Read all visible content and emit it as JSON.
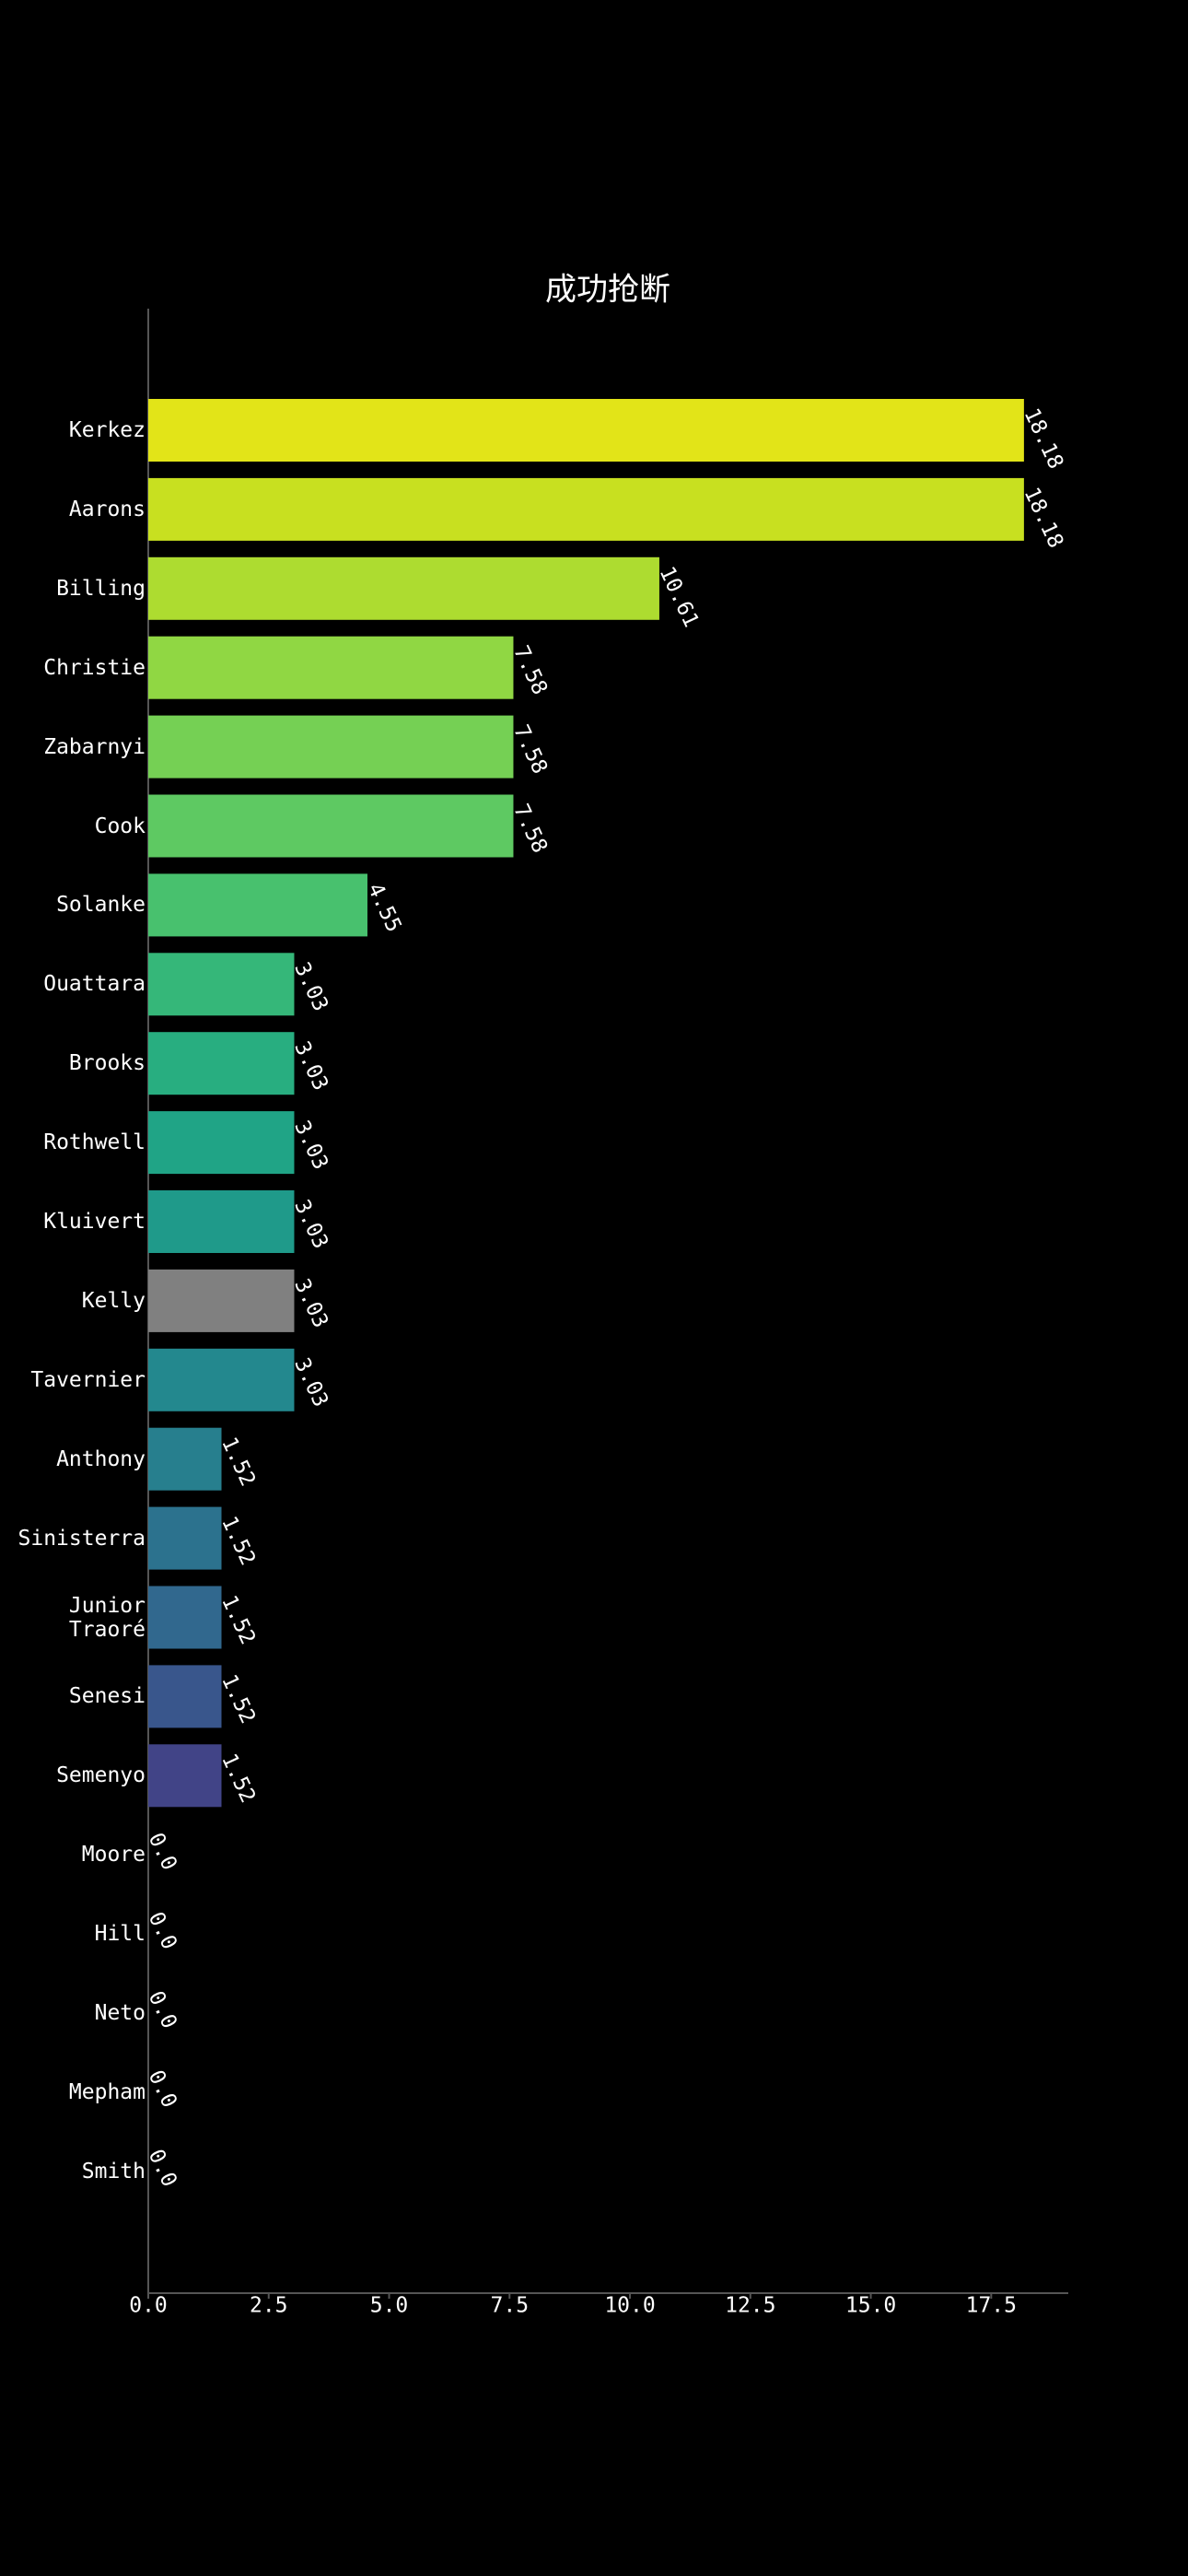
{
  "chart_data": {
    "type": "bar",
    "orientation": "horizontal",
    "title": "成功抢断",
    "categories": [
      "Kerkez",
      "Aarons",
      "Billing",
      "Christie",
      "Zabarnyi",
      "Cook",
      "Solanke",
      "Ouattara",
      "Brooks",
      "Rothwell",
      "Kluivert",
      "Kelly",
      "Tavernier",
      "Anthony",
      "Sinisterra",
      "Junior Traoré",
      "Senesi",
      "Semenyo",
      "Moore",
      "Hill",
      "Neto",
      "Mepham",
      "Smith"
    ],
    "values": [
      18.18,
      18.18,
      10.61,
      7.58,
      7.58,
      7.58,
      4.55,
      3.03,
      3.03,
      3.03,
      3.03,
      3.03,
      3.03,
      1.52,
      1.52,
      1.52,
      1.52,
      1.52,
      0,
      0,
      0,
      0,
      0
    ],
    "value_labels": [
      "18.18",
      "18.18",
      "10.61",
      "7.58",
      "7.58",
      "7.58",
      "4.55",
      "3.03",
      "3.03",
      "3.03",
      "3.03",
      "3.03",
      "3.03",
      "1.52",
      "1.52",
      "1.52",
      "1.52",
      "1.52",
      "0.0",
      "0.0",
      "0.0",
      "0.0",
      "0.0"
    ],
    "colors": [
      "#e2e418",
      "#c8e020",
      "#addc30",
      "#90d743",
      "#75d054",
      "#5ec962",
      "#48c16e",
      "#35b779",
      "#28ae80",
      "#20a486",
      "#1f9a8a",
      "#808080",
      "#23888e",
      "#277f8e",
      "#2c728e",
      "#31688e",
      "#39568c",
      "#414487",
      "#440154",
      "#440154",
      "#440154",
      "#440154",
      "#440154"
    ],
    "xlim": [
      0,
      19.1
    ],
    "xticks": [
      {
        "value": 0,
        "label": "0.0"
      },
      2.5,
      {
        "value": 5,
        "label": "5.0"
      },
      7.5,
      {
        "value": 10,
        "label": "10.0"
      },
      12.5,
      {
        "value": 15,
        "label": "15.0"
      },
      17.5
    ],
    "grid": false
  }
}
